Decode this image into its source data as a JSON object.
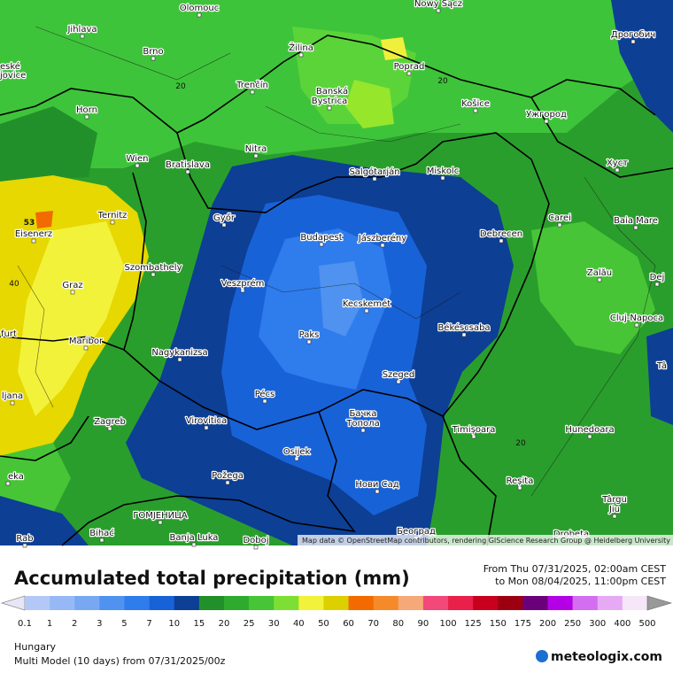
{
  "map": {
    "cities": [
      "Olomouc",
      "Nowy Sącz",
      "Дрогобич",
      "Jihlava",
      "eské",
      "jovice",
      "Brno",
      "Žilina",
      "Poprad",
      "Trenčín",
      "Banská",
      "Bystrica",
      "Košice",
      "Ужгород",
      "Horn",
      "Nitra",
      "Хуст",
      "Wien",
      "Bratislava",
      "Salgótarján",
      "Miskolc",
      "Ternitz",
      "Győr",
      "Carei",
      "Baia Mare",
      "Eisenerz",
      "Budapest",
      "Jászberény",
      "Debrecen",
      "Szombathely",
      "Zalău",
      "Graz",
      "Veszprém",
      "Dej",
      "Kecskemét",
      "Cluj-Napoca",
      "Békéscsaba",
      "Paks",
      "Maribor",
      "furt",
      "Nagykanizsa",
      "Tâ",
      "Szeged",
      "Pécs",
      "ljana",
      "Бачка",
      "Топола",
      "Virovitica",
      "Zagreb",
      "Timișoara",
      "Hunedoara",
      "Osijek",
      "Požega",
      "Reșita",
      "eka",
      "Нови Сад",
      "Târgu",
      "Jiu",
      "ГОМЈЕНИЦА",
      "Bihać",
      "Banja Luka",
      "Doboj",
      "Београд",
      "Drobeta",
      "Rab"
    ],
    "contour_labels": [
      20,
      20,
      20,
      40,
      53
    ],
    "attribution": "Map data © OpenStreetMap contributors, rendering GIScience Research Group @ Heidelberg University"
  },
  "header": {
    "title": "Accumulated total precipitation (mm)",
    "from": "From Thu 07/31/2025, 02:00am CEST",
    "to": "to Mon 08/04/2025, 11:00pm CEST"
  },
  "legend": {
    "ticks": [
      0.1,
      1,
      2,
      3,
      5,
      7,
      10,
      15,
      20,
      25,
      30,
      40,
      50,
      60,
      70,
      80,
      90,
      100,
      125,
      150,
      175,
      200,
      250,
      300,
      400,
      500
    ],
    "colors": [
      "#b4c8f7",
      "#96b9f5",
      "#78a8f2",
      "#4f92ef",
      "#2f7ced",
      "#1862d8",
      "#0d3f95",
      "#22902a",
      "#2eaa2e",
      "#47c536",
      "#7ddf34",
      "#f2f23a",
      "#dcd000",
      "#f26a00",
      "#f58a2a",
      "#f5a878",
      "#f2487a",
      "#e8204a",
      "#c8001e",
      "#9c0010",
      "#6a007a",
      "#b400e6",
      "#d46ef0",
      "#e6aaf5",
      "#f5e6f8"
    ],
    "under_color": "#e6e6f5",
    "over_color": "#999999"
  },
  "footer": {
    "region": "Hungary",
    "model": "Multi Model (10 days) from 07/31/2025/00z",
    "brand": "meteologix.com"
  }
}
